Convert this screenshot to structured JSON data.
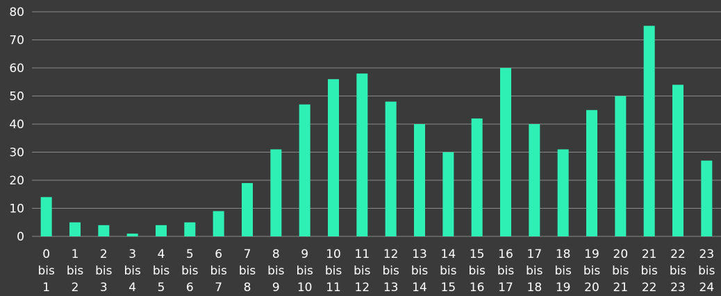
{
  "chart_data": {
    "type": "bar",
    "categories": [
      [
        "0",
        "bis",
        "1"
      ],
      [
        "1",
        "bis",
        "2"
      ],
      [
        "2",
        "bis",
        "3"
      ],
      [
        "3",
        "bis",
        "4"
      ],
      [
        "4",
        "bis",
        "5"
      ],
      [
        "5",
        "bis",
        "6"
      ],
      [
        "6",
        "bis",
        "7"
      ],
      [
        "7",
        "bis",
        "8"
      ],
      [
        "8",
        "bis",
        "9"
      ],
      [
        "9",
        "bis",
        "10"
      ],
      [
        "10",
        "bis",
        "11"
      ],
      [
        "11",
        "bis",
        "12"
      ],
      [
        "12",
        "bis",
        "13"
      ],
      [
        "13",
        "bis",
        "14"
      ],
      [
        "14",
        "bis",
        "15"
      ],
      [
        "15",
        "bis",
        "16"
      ],
      [
        "16",
        "bis",
        "17"
      ],
      [
        "17",
        "bis",
        "18"
      ],
      [
        "18",
        "bis",
        "19"
      ],
      [
        "19",
        "bis",
        "20"
      ],
      [
        "20",
        "bis",
        "21"
      ],
      [
        "21",
        "bis",
        "22"
      ],
      [
        "22",
        "bis",
        "23"
      ],
      [
        "23",
        "bis",
        "24"
      ]
    ],
    "values": [
      14,
      5,
      4,
      1,
      4,
      5,
      9,
      19,
      31,
      47,
      56,
      58,
      48,
      40,
      30,
      42,
      60,
      40,
      31,
      45,
      50,
      75,
      54,
      27
    ],
    "ylim": [
      0,
      80
    ],
    "yticks": [
      "0",
      "10",
      "20",
      "30",
      "40",
      "50",
      "60",
      "70",
      "80"
    ],
    "grid": true,
    "legend": "none",
    "colors": {
      "background": "#3a3a3a",
      "bar": "#2ef0b5",
      "grid": "#8a8a8a",
      "text": "#ffffff"
    }
  }
}
